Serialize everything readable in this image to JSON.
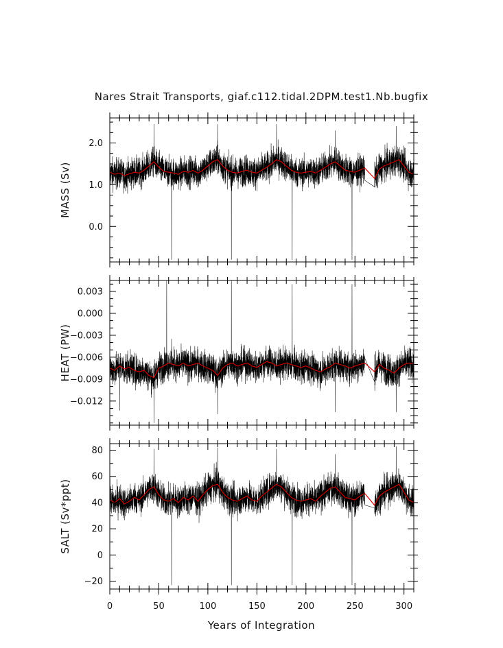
{
  "chart_data": {
    "type": "line",
    "title": "Nares Strait Transports, giaf.c112.tidal.2DPM.test1.Nb.bugfix",
    "xlabel": "Years of Integration",
    "xlim": [
      0,
      310
    ],
    "xticks": [
      0,
      50,
      100,
      150,
      200,
      250,
      300
    ],
    "x_minor_step": 10,
    "colors": {
      "raw": "#000000",
      "smoothed": "#cc0000"
    },
    "data_gap": [
      260,
      270
    ],
    "panels": [
      {
        "ylabel": "MASS (Sv)",
        "ylim": [
          -0.85,
          2.6
        ],
        "yticks": [
          0.0,
          1.0,
          2.0
        ],
        "ytick_labels": [
          "0.0",
          "1.0",
          "2.0"
        ],
        "y_minor_step": 0.25,
        "raw_mean": 1.35,
        "raw_amplitude": 0.32,
        "raw_spikes": [
          [
            45,
            2.45
          ],
          [
            63,
            -0.8
          ],
          [
            110,
            2.45
          ],
          [
            124,
            -0.8
          ],
          [
            170,
            2.45
          ],
          [
            186,
            -0.8
          ],
          [
            230,
            2.3
          ],
          [
            247,
            -0.8
          ],
          [
            292,
            2.4
          ]
        ],
        "smoothed": {
          "x": [
            0,
            5,
            10,
            15,
            20,
            25,
            30,
            35,
            40,
            45,
            50,
            55,
            60,
            65,
            70,
            75,
            80,
            85,
            90,
            95,
            100,
            105,
            110,
            115,
            120,
            125,
            130,
            135,
            140,
            145,
            150,
            155,
            160,
            165,
            170,
            175,
            180,
            185,
            190,
            195,
            200,
            205,
            210,
            215,
            220,
            225,
            230,
            235,
            240,
            245,
            250,
            255,
            260,
            270,
            275,
            280,
            285,
            290,
            295,
            300,
            305,
            310
          ],
          "y": [
            1.3,
            1.25,
            1.28,
            1.22,
            1.26,
            1.3,
            1.28,
            1.35,
            1.45,
            1.55,
            1.42,
            1.32,
            1.3,
            1.28,
            1.25,
            1.32,
            1.3,
            1.34,
            1.28,
            1.35,
            1.45,
            1.55,
            1.6,
            1.45,
            1.35,
            1.3,
            1.28,
            1.32,
            1.35,
            1.3,
            1.28,
            1.35,
            1.42,
            1.5,
            1.6,
            1.55,
            1.45,
            1.35,
            1.3,
            1.28,
            1.3,
            1.32,
            1.28,
            1.35,
            1.42,
            1.5,
            1.55,
            1.45,
            1.35,
            1.32,
            1.3,
            1.35,
            1.4,
            1.15,
            1.38,
            1.45,
            1.5,
            1.55,
            1.6,
            1.45,
            1.3,
            1.25
          ]
        }
      },
      {
        "ylabel": "HEAT (PW)",
        "ylim": [
          -0.0153,
          0.0045
        ],
        "yticks": [
          -0.012,
          -0.009,
          -0.006,
          -0.003,
          0.0,
          0.003
        ],
        "ytick_labels": [
          "−0.012",
          "−0.009",
          "−0.006",
          "−0.003",
          "0.000",
          "0.003"
        ],
        "y_minor_step": 0.001,
        "raw_mean": -0.0073,
        "raw_amplitude": 0.0019,
        "raw_spikes": [
          [
            10,
            -0.0133
          ],
          [
            45,
            -0.015
          ],
          [
            58,
            0.0045
          ],
          [
            63,
            -0.0035
          ],
          [
            110,
            -0.0138
          ],
          [
            124,
            0.0045
          ],
          [
            186,
            0.004
          ],
          [
            230,
            -0.0135
          ],
          [
            247,
            0.004
          ],
          [
            292,
            -0.0135
          ]
        ],
        "smoothed": {
          "x": [
            0,
            5,
            10,
            15,
            20,
            25,
            30,
            35,
            40,
            45,
            50,
            55,
            60,
            65,
            70,
            75,
            80,
            85,
            90,
            95,
            100,
            105,
            110,
            115,
            120,
            125,
            130,
            135,
            140,
            145,
            150,
            155,
            160,
            165,
            170,
            175,
            180,
            185,
            190,
            195,
            200,
            205,
            210,
            215,
            220,
            225,
            230,
            235,
            240,
            245,
            250,
            255,
            260,
            270,
            275,
            280,
            285,
            290,
            295,
            300,
            305,
            310
          ],
          "y": [
            -0.0075,
            -0.0078,
            -0.0072,
            -0.0076,
            -0.0074,
            -0.0078,
            -0.008,
            -0.0078,
            -0.0085,
            -0.0088,
            -0.0075,
            -0.0072,
            -0.0068,
            -0.007,
            -0.0072,
            -0.0068,
            -0.0072,
            -0.007,
            -0.0068,
            -0.0072,
            -0.0075,
            -0.0078,
            -0.0085,
            -0.0075,
            -0.007,
            -0.0068,
            -0.0072,
            -0.007,
            -0.0068,
            -0.0072,
            -0.0074,
            -0.007,
            -0.0066,
            -0.0068,
            -0.0072,
            -0.007,
            -0.0068,
            -0.007,
            -0.0072,
            -0.0074,
            -0.0072,
            -0.0075,
            -0.0078,
            -0.008,
            -0.0076,
            -0.0073,
            -0.0068,
            -0.007,
            -0.0072,
            -0.0075,
            -0.0072,
            -0.007,
            -0.0068,
            -0.008,
            -0.007,
            -0.0075,
            -0.0078,
            -0.0082,
            -0.0075,
            -0.007,
            -0.0068,
            -0.007
          ]
        }
      },
      {
        "ylabel": "SALT (Sv*ppt)",
        "ylim": [
          -26,
          85
        ],
        "yticks": [
          -20,
          0,
          20,
          40,
          60,
          80
        ],
        "ytick_labels": [
          "−20",
          "0",
          "20",
          "40",
          "60",
          "80"
        ],
        "y_minor_step": 10,
        "raw_mean": 45,
        "raw_amplitude": 10.5,
        "raw_spikes": [
          [
            45,
            81
          ],
          [
            63,
            -23
          ],
          [
            110,
            82
          ],
          [
            124,
            -23
          ],
          [
            170,
            81
          ],
          [
            186,
            -23
          ],
          [
            230,
            77
          ],
          [
            247,
            -23
          ],
          [
            292,
            83
          ]
        ],
        "smoothed": {
          "x": [
            0,
            5,
            10,
            15,
            20,
            25,
            30,
            35,
            40,
            45,
            50,
            55,
            60,
            65,
            70,
            75,
            80,
            85,
            90,
            95,
            100,
            105,
            110,
            115,
            120,
            125,
            130,
            135,
            140,
            145,
            150,
            155,
            160,
            165,
            170,
            175,
            180,
            185,
            190,
            195,
            200,
            205,
            210,
            215,
            220,
            225,
            230,
            235,
            240,
            245,
            250,
            255,
            260,
            270,
            275,
            280,
            285,
            290,
            295,
            300,
            305,
            310
          ],
          "y": [
            42,
            40,
            43,
            39,
            41,
            44,
            42,
            46,
            50,
            52,
            46,
            42,
            41,
            43,
            40,
            44,
            42,
            45,
            41,
            46,
            50,
            53,
            54,
            48,
            44,
            42,
            41,
            43,
            45,
            42,
            41,
            45,
            48,
            51,
            54,
            52,
            48,
            44,
            42,
            41,
            42,
            43,
            41,
            45,
            48,
            51,
            52,
            48,
            44,
            43,
            42,
            45,
            47,
            38,
            45,
            48,
            50,
            52,
            54,
            48,
            42,
            40
          ]
        }
      }
    ]
  }
}
